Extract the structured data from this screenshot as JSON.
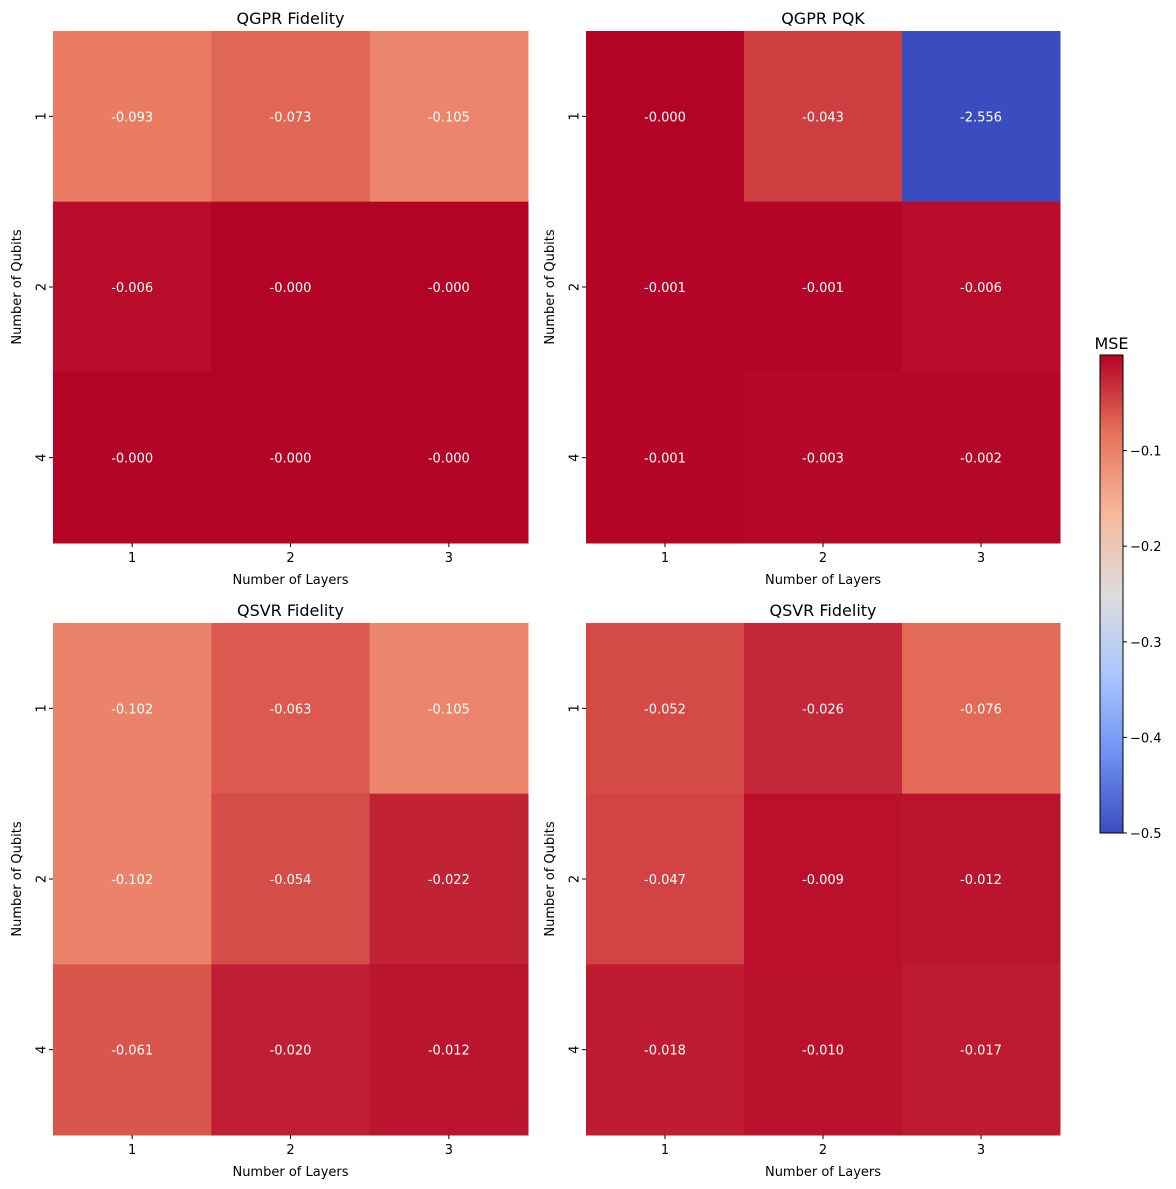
{
  "chart_data": [
    {
      "type": "heatmap",
      "title": "QGPR Fidelity",
      "xlabel": "Number of Layers",
      "ylabel": "Number of Qubits",
      "x_categories": [
        "1",
        "2",
        "3"
      ],
      "y_categories": [
        "1",
        "2",
        "4"
      ],
      "values": [
        [
          -0.093,
          -0.073,
          -0.105
        ],
        [
          -0.006,
          -0.0,
          -0.0
        ],
        [
          -0.0,
          -0.0,
          -0.0
        ]
      ],
      "value_labels": [
        [
          "-0.093",
          "-0.073",
          "-0.105"
        ],
        [
          "-0.006",
          "-0.000",
          "-0.000"
        ],
        [
          "-0.000",
          "-0.000",
          "-0.000"
        ]
      ]
    },
    {
      "type": "heatmap",
      "title": "QGPR PQK",
      "xlabel": "Number of Layers",
      "ylabel": "Number of Qubits",
      "x_categories": [
        "1",
        "2",
        "3"
      ],
      "y_categories": [
        "1",
        "2",
        "4"
      ],
      "values": [
        [
          -0.0,
          -0.043,
          -2.556
        ],
        [
          -0.001,
          -0.001,
          -0.006
        ],
        [
          -0.001,
          -0.003,
          -0.002
        ]
      ],
      "value_labels": [
        [
          "-0.000",
          "-0.043",
          "-2.556"
        ],
        [
          "-0.001",
          "-0.001",
          "-0.006"
        ],
        [
          "-0.001",
          "-0.003",
          "-0.002"
        ]
      ]
    },
    {
      "type": "heatmap",
      "title": "QSVR Fidelity",
      "xlabel": "Number of Layers",
      "ylabel": "Number of Qubits",
      "x_categories": [
        "1",
        "2",
        "3"
      ],
      "y_categories": [
        "1",
        "2",
        "4"
      ],
      "values": [
        [
          -0.102,
          -0.063,
          -0.105
        ],
        [
          -0.102,
          -0.054,
          -0.022
        ],
        [
          -0.061,
          -0.02,
          -0.012
        ]
      ],
      "value_labels": [
        [
          "-0.102",
          "-0.063",
          "-0.105"
        ],
        [
          "-0.102",
          "-0.054",
          "-0.022"
        ],
        [
          "-0.061",
          "-0.020",
          "-0.012"
        ]
      ]
    },
    {
      "type": "heatmap",
      "title": "QSVR Fidelity",
      "xlabel": "Number of Layers",
      "ylabel": "Number of Qubits",
      "x_categories": [
        "1",
        "2",
        "3"
      ],
      "y_categories": [
        "1",
        "2",
        "4"
      ],
      "values": [
        [
          -0.052,
          -0.026,
          -0.076
        ],
        [
          -0.047,
          -0.009,
          -0.012
        ],
        [
          -0.018,
          -0.01,
          -0.017
        ]
      ],
      "value_labels": [
        [
          "-0.052",
          "-0.026",
          "-0.076"
        ],
        [
          "-0.047",
          "-0.009",
          "-0.012"
        ],
        [
          "-0.018",
          "-0.010",
          "-0.017"
        ]
      ]
    }
  ],
  "colorbar": {
    "title": "MSE",
    "colormap": "coolwarm",
    "vmin": -0.5,
    "vmax": 0.0,
    "ticks": [
      -0.1,
      -0.2,
      -0.3,
      -0.4,
      -0.5
    ],
    "tick_labels": [
      "−0.1",
      "−0.2",
      "−0.3",
      "−0.4",
      "−0.5"
    ]
  },
  "colors": {
    "annotation_text": "#ffffff",
    "axis_text": "#000000",
    "colormap_stops": [
      "#3b4cc0",
      "#6f92f3",
      "#aac7fd",
      "#dddcdc",
      "#f7b89c",
      "#e7745b",
      "#b40426"
    ]
  }
}
